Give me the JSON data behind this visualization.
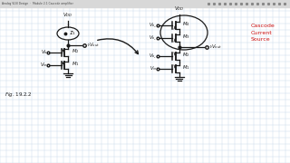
{
  "bg_color": "#ffffff",
  "grid_color": "#c5d8e8",
  "toolbar_color": "#d8d8d8",
  "title_text": "Analog VLSI Design  ·  Module 2.1 Cascode amplifier",
  "red_text": "Cascode\nCurrent\nSource",
  "red_color": "#cc1111",
  "line_color": "#1a1a1a",
  "fig_label": "Fig. 19.2.2"
}
